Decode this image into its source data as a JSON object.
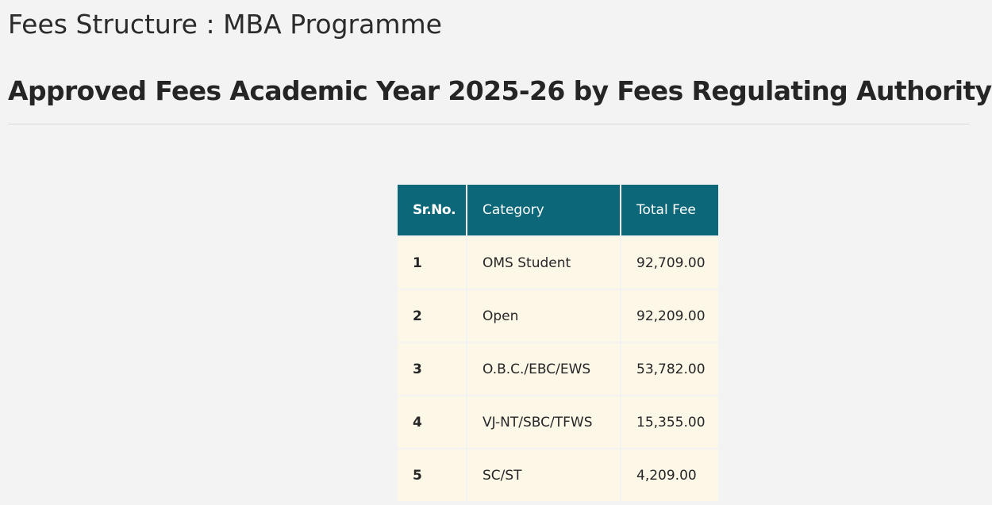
{
  "page": {
    "title": "Fees Structure : MBA Programme",
    "subtitle": "Approved Fees Academic Year 2025-26 by Fees Regulating Authority"
  },
  "table": {
    "headers": [
      "Sr.No.",
      "Category",
      "Total Fee"
    ],
    "rows": [
      [
        "1",
        "OMS Student",
        "92,709.00"
      ],
      [
        "2",
        "Open",
        "92,209.00"
      ],
      [
        "3",
        "O.B.C./EBC/EWS",
        "53,782.00"
      ],
      [
        "4",
        "VJ-NT/SBC/TFWS",
        "15,355.00"
      ],
      [
        "5",
        "SC/ST",
        "4,209.00"
      ]
    ]
  },
  "colors": {
    "header_bg": "#0c6878",
    "cell_bg": "#fdf7e8",
    "page_bg": "#f3f3f3"
  }
}
